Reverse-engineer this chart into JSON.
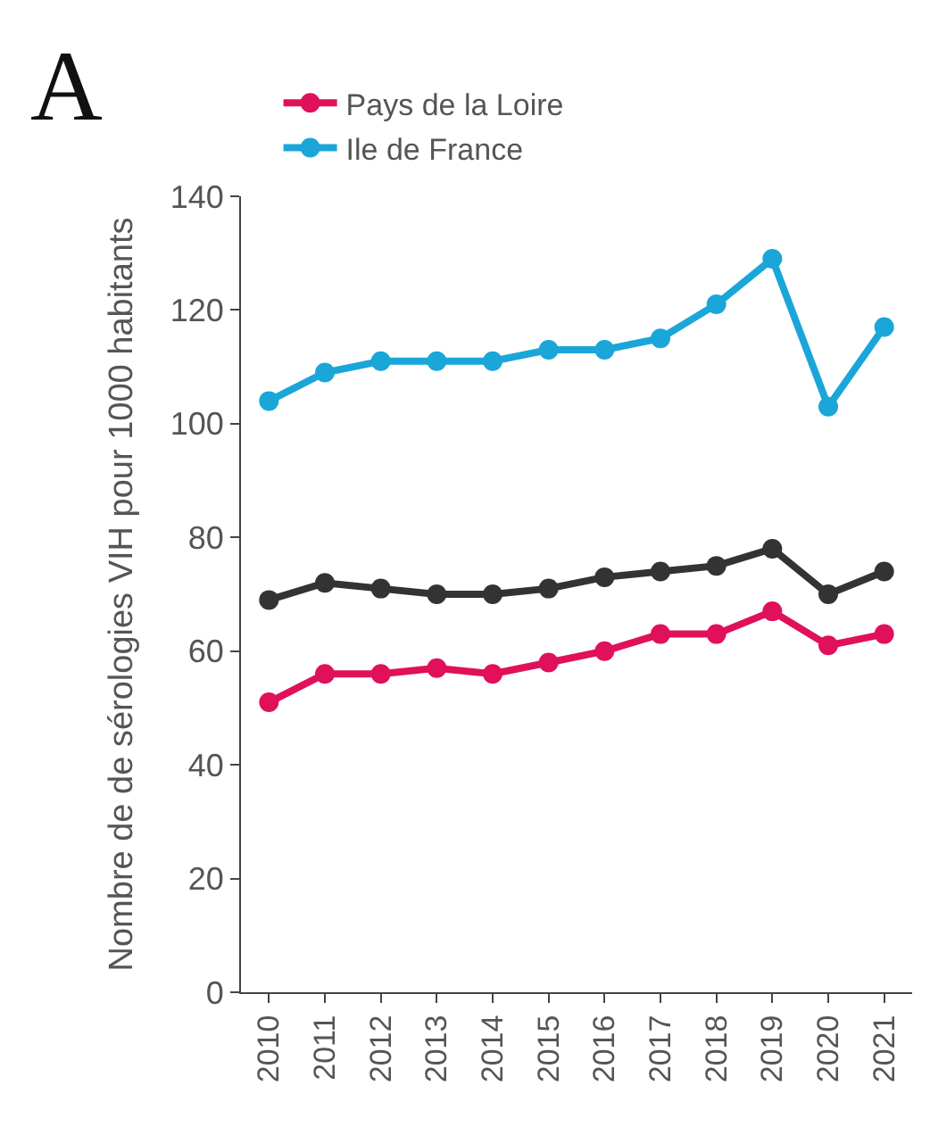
{
  "chart_data": {
    "type": "line",
    "ylabel": "Nombre de de sérologies VIH pour 1000 habitants",
    "annotations": [
      "A"
    ],
    "categories": [
      "2010",
      "2011",
      "2012",
      "2013",
      "2014",
      "2015",
      "2016",
      "2017",
      "2018",
      "2019",
      "2020",
      "2021"
    ],
    "series": [
      {
        "name": "Pays de la Loire",
        "color": "#e0105a",
        "values": [
          51,
          56,
          56,
          57,
          56,
          58,
          60,
          63,
          63,
          67,
          61,
          63
        ]
      },
      {
        "name": "Ile de France",
        "color": "#1aa6d9",
        "values": [
          104,
          109,
          111,
          111,
          111,
          113,
          113,
          115,
          121,
          129,
          103,
          117
        ]
      },
      {
        "color": "#333333",
        "values": [
          69,
          72,
          71,
          70,
          70,
          71,
          73,
          74,
          75,
          78,
          70,
          74
        ]
      }
    ],
    "ylim": [
      0,
      140
    ],
    "yticks": [
      0,
      20,
      40,
      60,
      80,
      100,
      120,
      140
    ],
    "legend": "top",
    "marker": "circle",
    "line_style": "solid"
  }
}
